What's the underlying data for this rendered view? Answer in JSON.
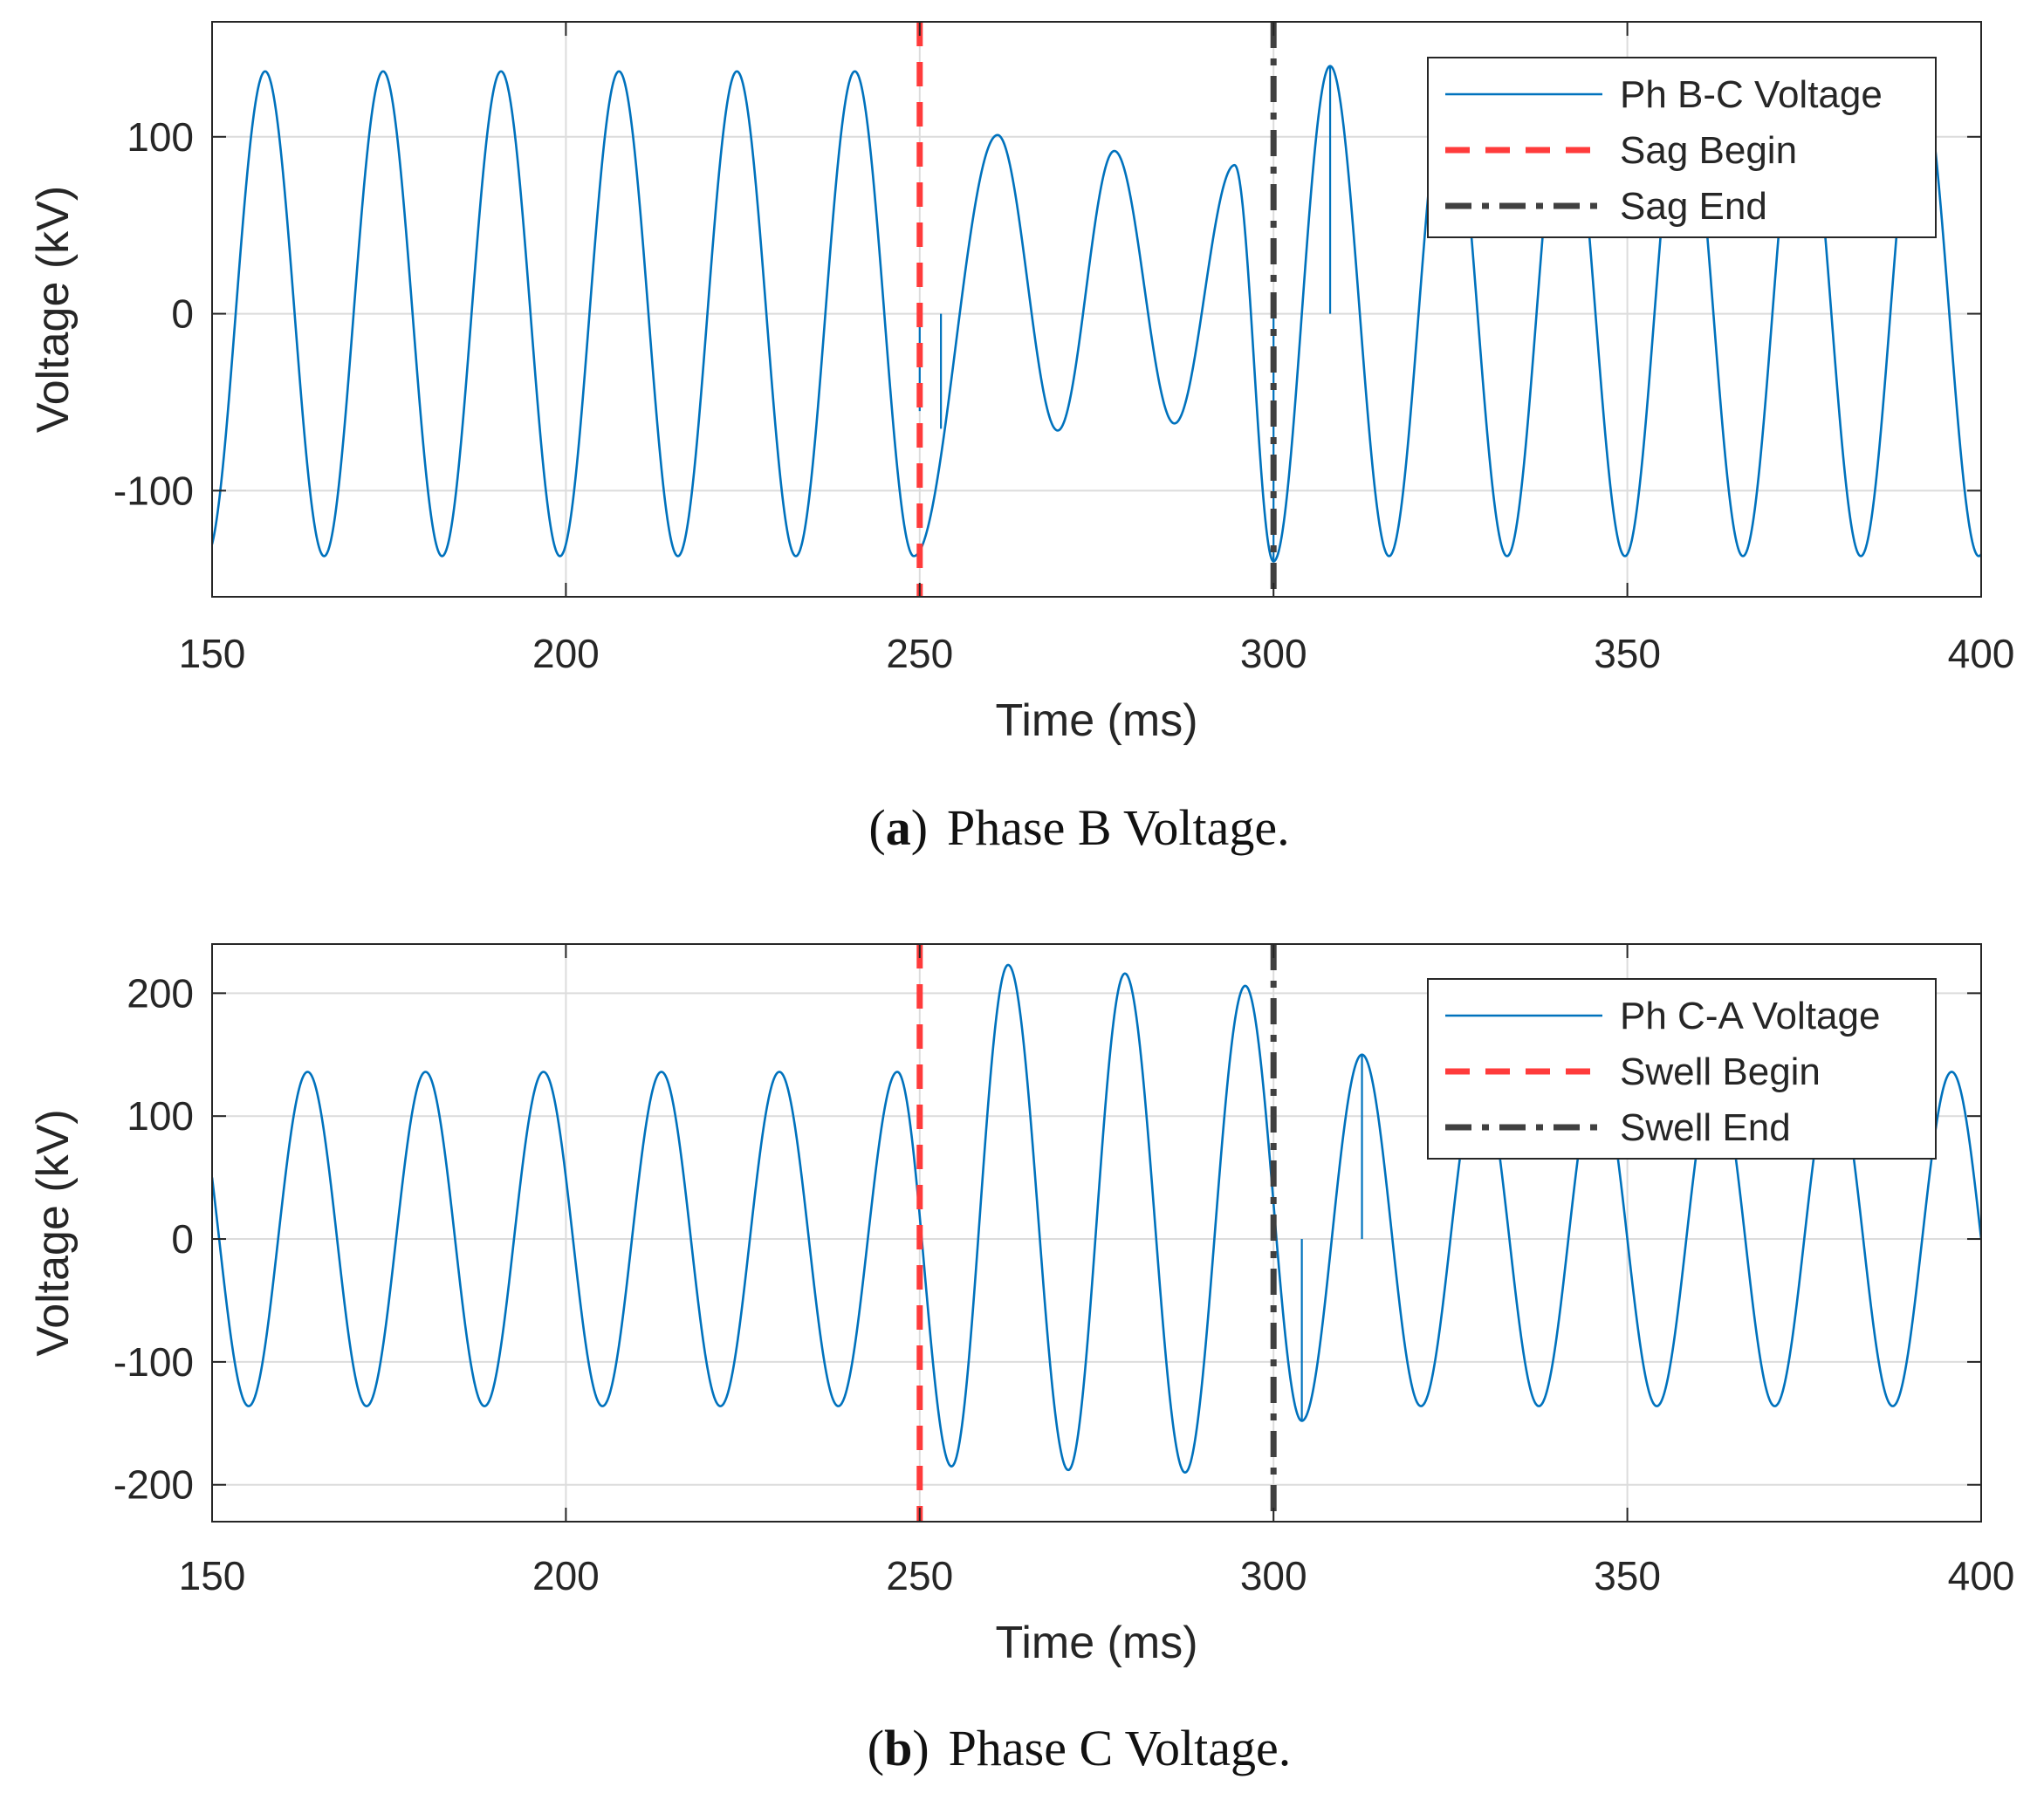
{
  "chart_data": [
    {
      "type": "line",
      "caption_label": "a",
      "caption_text": "Phase B Voltage.",
      "xlabel": "Time (ms)",
      "ylabel": "Voltage (kV)",
      "xlim": [
        150,
        400
      ],
      "ylim": [
        -160,
        165
      ],
      "xticks": [
        150,
        200,
        250,
        300,
        350,
        400
      ],
      "yticks": [
        -100,
        0,
        100
      ],
      "grid": true,
      "legend_position": "top-right",
      "series": [
        {
          "name": "Ph B-C Voltage",
          "color": "#0072BD",
          "style": "solid",
          "normal_amplitude_kv": 137,
          "frequency_hz": 60,
          "first_peak_ms": 157.5,
          "disturbance_peaks_kv": [
            {
              "t": 261,
              "v": 101
            },
            {
              "t": 269.5,
              "v": -66
            },
            {
              "t": 277.5,
              "v": 92
            },
            {
              "t": 286,
              "v": -62
            },
            {
              "t": 294.5,
              "v": 84
            }
          ],
          "notable_points": [
            {
              "t": 250,
              "v": -55
            },
            {
              "t": 253,
              "v": -65
            },
            {
              "t": 300,
              "v": -140
            },
            {
              "t": 308,
              "v": 140
            }
          ]
        },
        {
          "name": "Sag Begin",
          "color": "#FF3B3B",
          "style": "dashed",
          "x": 250
        },
        {
          "name": "Sag End",
          "color": "#404040",
          "style": "dashdot",
          "x": 300
        }
      ]
    },
    {
      "type": "line",
      "caption_label": "b",
      "caption_text": "Phase C Voltage.",
      "xlabel": "Time (ms)",
      "ylabel": "Voltage (kV)",
      "xlim": [
        150,
        400
      ],
      "ylim": [
        -230,
        240
      ],
      "xticks": [
        150,
        200,
        250,
        300,
        350,
        400
      ],
      "yticks": [
        -200,
        -100,
        0,
        100,
        200
      ],
      "grid": true,
      "legend_position": "top-right",
      "series": [
        {
          "name": "Ph C-A Voltage",
          "color": "#0072BD",
          "style": "solid",
          "normal_amplitude_kv": 136,
          "frequency_hz": 60,
          "first_peak_ms": 163.5,
          "disturbance_peaks_kv": [
            {
              "t": 254.5,
              "v": -185
            },
            {
              "t": 262.5,
              "v": 223
            },
            {
              "t": 271,
              "v": -188
            },
            {
              "t": 279,
              "v": 216
            },
            {
              "t": 287.5,
              "v": -190
            },
            {
              "t": 296,
              "v": 206
            }
          ],
          "notable_points": [
            {
              "t": 304,
              "v": -148
            },
            {
              "t": 312.5,
              "v": 150
            }
          ]
        },
        {
          "name": "Swell Begin",
          "color": "#FF3B3B",
          "style": "dashed",
          "x": 250
        },
        {
          "name": "Swell End",
          "color": "#404040",
          "style": "dashdot",
          "x": 300
        }
      ]
    }
  ]
}
